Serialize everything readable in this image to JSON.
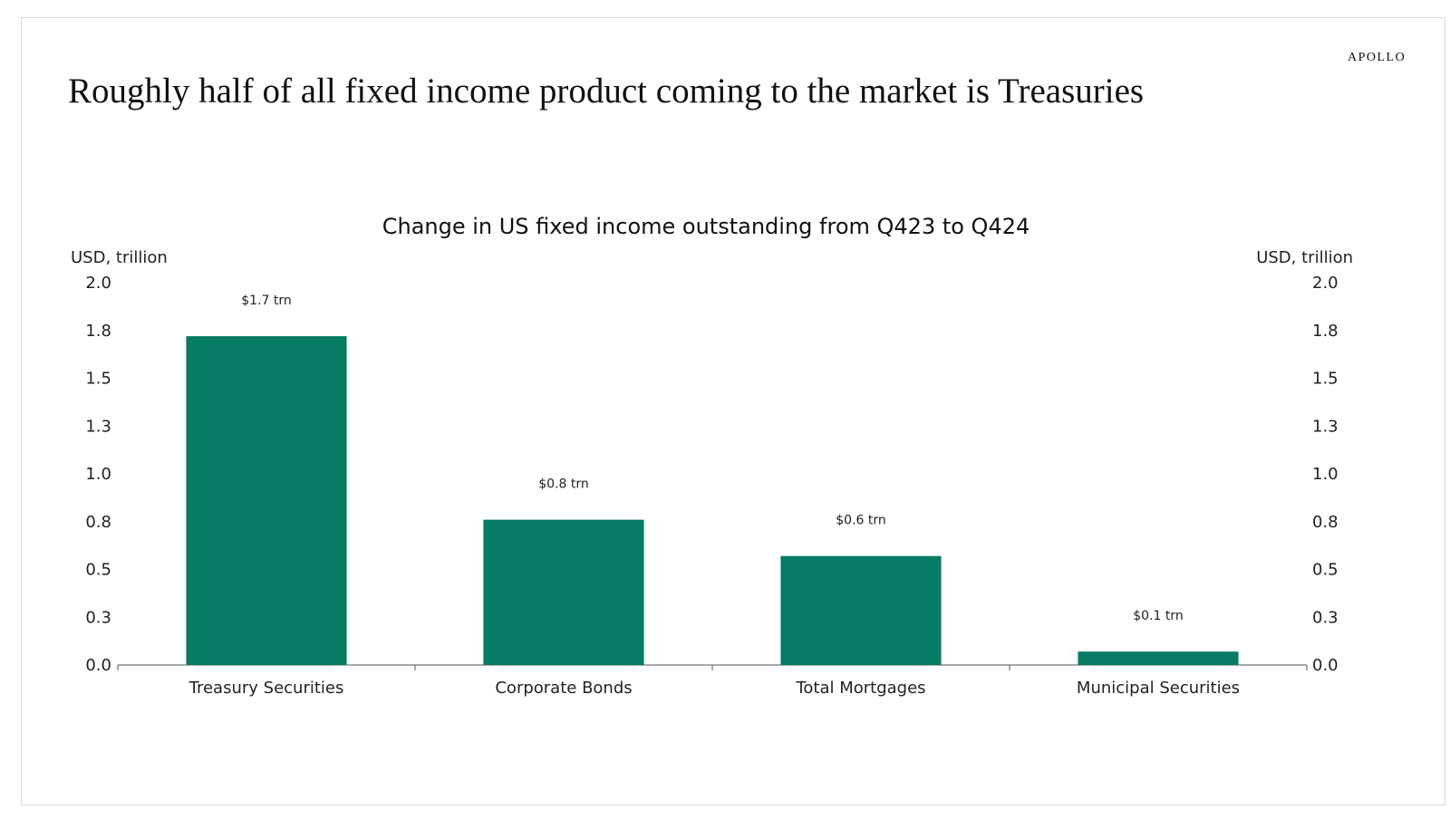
{
  "brand": "APOLLO",
  "headline": "Roughly half of all fixed income product coming to the market is Treasuries",
  "chart_data": {
    "type": "bar",
    "title": "Change in US fixed income outstanding from Q423 to Q424",
    "y_unit_left": "USD, trillion",
    "y_unit_right": "USD, trillion",
    "categories": [
      "Treasury Securities",
      "Corporate Bonds",
      "Total Mortgages",
      "Municipal Securities"
    ],
    "values": [
      1.72,
      0.76,
      0.57,
      0.07
    ],
    "data_labels": [
      "$1.7 trn",
      "$0.8 trn",
      "$0.6 trn",
      "$0.1 trn"
    ],
    "ylim": [
      0,
      2.0
    ],
    "y_ticks": [
      0.0,
      0.25,
      0.5,
      0.75,
      1.0,
      1.25,
      1.5,
      1.75,
      2.0
    ],
    "y_tick_labels": [
      "0.0",
      "0.3",
      "0.5",
      "0.8",
      "1.0",
      "1.3",
      "1.5",
      "1.8",
      "2.0"
    ],
    "bar_color": "#057c63",
    "grid": false,
    "legend": "none"
  }
}
